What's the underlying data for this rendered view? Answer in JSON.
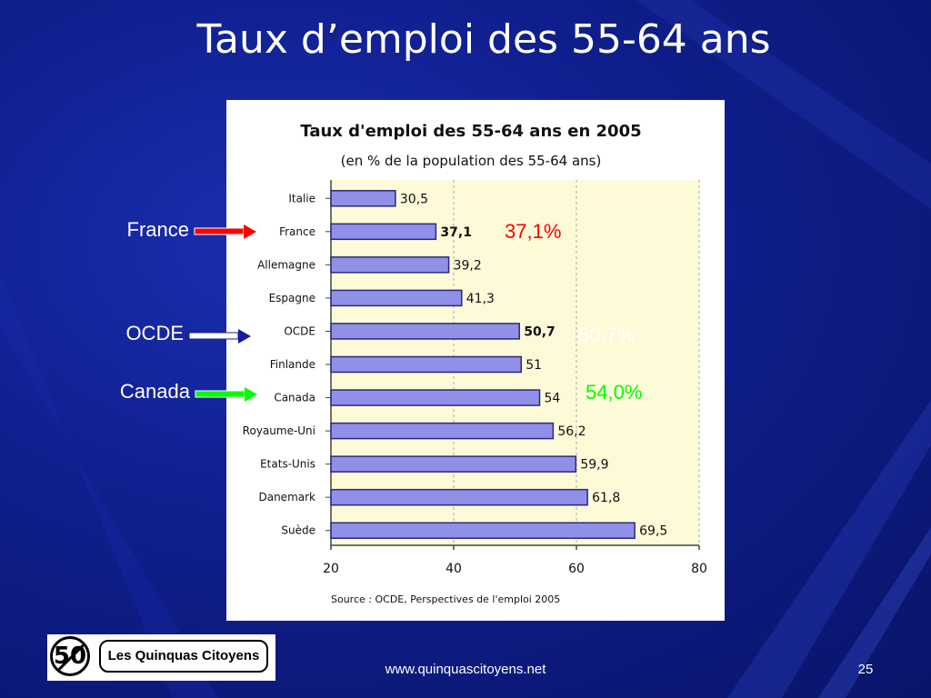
{
  "slide": {
    "title": "Taux d’emploi des 55-64 ans",
    "footer_url": "www.quinquascitoyens.net",
    "page_number": "25",
    "logo": {
      "number": "50",
      "text": "Les Quinquas Citoyens"
    }
  },
  "callouts": [
    {
      "label": "France",
      "value": "37,1%",
      "value_color": "#ff0000",
      "arrow_color": "#ff0000"
    },
    {
      "label": "OCDE",
      "value": "50,7%",
      "value_color": "#ffffff",
      "arrow_color": "#1a1aa0"
    },
    {
      "label": "Canada",
      "value": "54,0%",
      "value_color": "#00ff00",
      "arrow_color": "#00ff00"
    }
  ],
  "chart_data": {
    "type": "bar",
    "orientation": "horizontal",
    "title": "Taux d'emploi des 55-64 ans en 2005",
    "subtitle": "(en % de la population des 55-64 ans)",
    "source": "Source : OCDE, Perspectives de l'emploi 2005",
    "categories": [
      "Italie",
      "France",
      "Allemagne",
      "Espagne",
      "OCDE",
      "Finlande",
      "Canada",
      "Royaume-Uni",
      "Etats-Unis",
      "Danemark",
      "Suède"
    ],
    "values": [
      30.5,
      37.1,
      39.2,
      41.3,
      50.7,
      51,
      54,
      56.2,
      59.9,
      61.8,
      69.5
    ],
    "value_labels": [
      "30,5",
      "37,1",
      "39,2",
      "41,3",
      "50,7",
      "51",
      "54",
      "56,2",
      "59,9",
      "61,8",
      "69,5"
    ],
    "bold_categories": [
      "France",
      "OCDE"
    ],
    "xlim": [
      20,
      80
    ],
    "xticks": [
      20,
      40,
      60,
      80
    ],
    "grid": "vertical dashed",
    "colors": {
      "bar": "#9090e8",
      "bar_edge": "#2a2a7a",
      "plot_bg": "#fdfad8"
    }
  }
}
